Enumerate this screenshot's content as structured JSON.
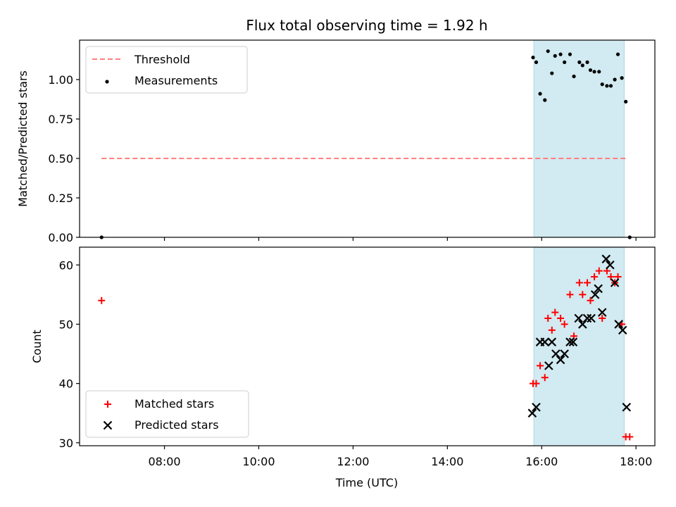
{
  "figure": {
    "title": "Flux total observing time = 1.92 h",
    "xlabel": "Time (UTC)",
    "x_ticks": [
      "08:00",
      "10:00",
      "12:00",
      "14:00",
      "16:00",
      "18:00"
    ],
    "observing_window": {
      "start": "15:50",
      "end": "17:45"
    },
    "colors": {
      "threshold": "#ff7f7f",
      "measurement": "#000000",
      "matched": "#ff0000",
      "predicted": "#000000",
      "window": "#add8e6"
    }
  },
  "chart_data": [
    {
      "type": "line",
      "ylabel": "Matched/Predicted stars",
      "ylim": [
        0,
        1.25
      ],
      "y_ticks": [
        "0.00",
        "0.25",
        "0.50",
        "0.75",
        "1.00"
      ],
      "legend_placement": "upper-left",
      "threshold": {
        "name": "Threshold",
        "y": 0.5,
        "x_start": "06:40",
        "x_end": "17:50"
      },
      "series": [
        {
          "name": "Measurements",
          "type": "scatter",
          "points": [
            [
              "06:40",
              0.0
            ],
            [
              "15:49",
              1.14
            ],
            [
              "15:53",
              1.11
            ],
            [
              "15:58",
              0.91
            ],
            [
              "16:04",
              0.87
            ],
            [
              "16:08",
              1.18
            ],
            [
              "16:13",
              1.04
            ],
            [
              "16:17",
              1.15
            ],
            [
              "16:24",
              1.16
            ],
            [
              "16:29",
              1.11
            ],
            [
              "16:36",
              1.16
            ],
            [
              "16:41",
              1.02
            ],
            [
              "16:48",
              1.11
            ],
            [
              "16:52",
              1.09
            ],
            [
              "16:58",
              1.11
            ],
            [
              "17:02",
              1.06
            ],
            [
              "17:07",
              1.05
            ],
            [
              "17:13",
              1.05
            ],
            [
              "17:17",
              0.97
            ],
            [
              "17:23",
              0.96
            ],
            [
              "17:28",
              0.96
            ],
            [
              "17:33",
              1.0
            ],
            [
              "17:37",
              1.16
            ],
            [
              "17:42",
              1.01
            ],
            [
              "17:47",
              0.86
            ],
            [
              "17:52",
              0.0
            ]
          ]
        }
      ]
    },
    {
      "type": "scatter",
      "ylabel": "Count",
      "ylim": [
        29.5,
        63
      ],
      "y_ticks": [
        "30",
        "40",
        "50",
        "60"
      ],
      "legend_placement": "lower-left",
      "series": [
        {
          "name": "Matched stars",
          "marker": "plus",
          "points": [
            [
              "06:40",
              54
            ],
            [
              "15:49",
              40
            ],
            [
              "15:53",
              40
            ],
            [
              "15:58",
              43
            ],
            [
              "16:04",
              41
            ],
            [
              "16:08",
              51
            ],
            [
              "16:13",
              49
            ],
            [
              "16:17",
              52
            ],
            [
              "16:24",
              51
            ],
            [
              "16:29",
              50
            ],
            [
              "16:36",
              55
            ],
            [
              "16:41",
              48
            ],
            [
              "16:48",
              57
            ],
            [
              "16:52",
              55
            ],
            [
              "16:58",
              57
            ],
            [
              "17:02",
              54
            ],
            [
              "17:07",
              58
            ],
            [
              "17:13",
              59
            ],
            [
              "17:17",
              51
            ],
            [
              "17:23",
              59
            ],
            [
              "17:28",
              58
            ],
            [
              "17:33",
              57
            ],
            [
              "17:37",
              58
            ],
            [
              "17:42",
              50
            ],
            [
              "17:47",
              31
            ],
            [
              "17:52",
              31
            ]
          ]
        },
        {
          "name": "Predicted stars",
          "marker": "x",
          "points": [
            [
              "15:48",
              35
            ],
            [
              "15:53",
              36
            ],
            [
              "15:58",
              47
            ],
            [
              "16:04",
              47
            ],
            [
              "16:09",
              43
            ],
            [
              "16:13",
              47
            ],
            [
              "16:18",
              45
            ],
            [
              "16:24",
              44
            ],
            [
              "16:29",
              45
            ],
            [
              "16:36",
              47
            ],
            [
              "16:40",
              47
            ],
            [
              "16:47",
              51
            ],
            [
              "16:52",
              50
            ],
            [
              "16:58",
              51
            ],
            [
              "17:03",
              51
            ],
            [
              "17:08",
              55
            ],
            [
              "17:12",
              56
            ],
            [
              "17:17",
              52
            ],
            [
              "17:22",
              61
            ],
            [
              "17:27",
              60
            ],
            [
              "17:33",
              57
            ],
            [
              "17:38",
              50
            ],
            [
              "17:43",
              49
            ],
            [
              "17:48",
              36
            ]
          ]
        }
      ]
    }
  ]
}
